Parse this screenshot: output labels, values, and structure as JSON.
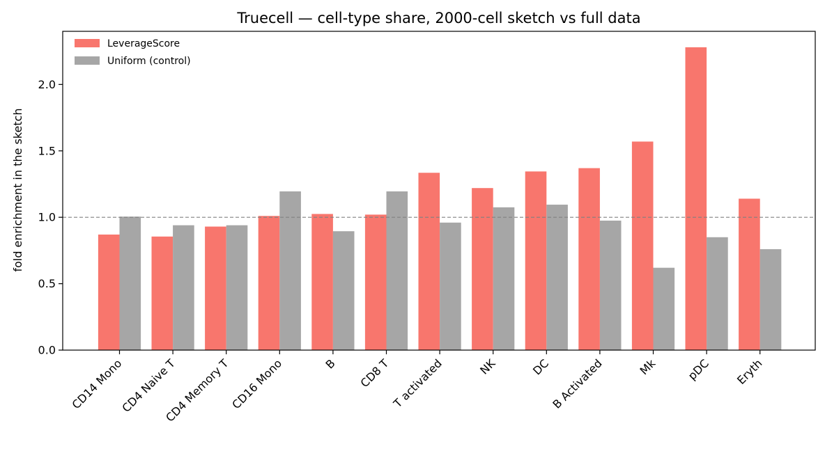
{
  "chart_data": {
    "type": "bar",
    "title": "Truecell — cell-type share, 2000-cell sketch vs full data",
    "xlabel": "",
    "ylabel": "fold enrichment in the sketch",
    "ylim": [
      0,
      2.4
    ],
    "yticks": [
      "0.0",
      "0.5",
      "1.0",
      "1.5",
      "2.0"
    ],
    "reference_line": 1.0,
    "grid": false,
    "legend_position": "top-left",
    "categories": [
      "CD14 Mono",
      "CD4 Naive T",
      "CD4 Memory T",
      "CD16 Mono",
      "B",
      "CD8 T",
      "T activated",
      "NK",
      "DC",
      "B Activated",
      "Mk",
      "pDC",
      "Eryth"
    ],
    "series": [
      {
        "name": "LeverageScore",
        "color": "#f8766d",
        "values": [
          0.87,
          0.855,
          0.93,
          1.01,
          1.025,
          1.02,
          1.335,
          1.22,
          1.345,
          1.37,
          1.57,
          2.28,
          1.14
        ]
      },
      {
        "name": "Uniform (control)",
        "color": "#a6a6a6",
        "values": [
          1.005,
          0.94,
          0.94,
          1.195,
          0.895,
          1.195,
          0.96,
          1.075,
          1.095,
          0.975,
          0.62,
          0.85,
          0.76
        ]
      }
    ]
  }
}
